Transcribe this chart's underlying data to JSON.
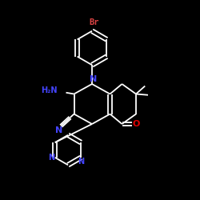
{
  "background_color": "#000000",
  "bond_color": "#ffffff",
  "atom_colors": {
    "N": "#4444ff",
    "O": "#dd0000",
    "Br": "#dd4444",
    "C": "#ffffff",
    "H": "#ffffff"
  },
  "figsize": [
    2.5,
    2.5
  ],
  "dpi": 100,
  "xlim": [
    0,
    10
  ],
  "ylim": [
    0,
    10
  ]
}
